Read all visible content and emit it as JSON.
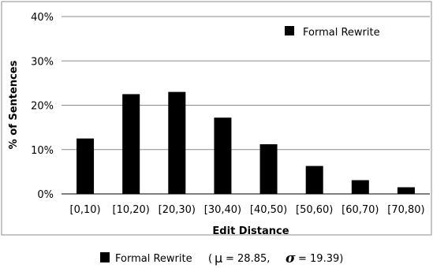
{
  "chart_data": {
    "type": "bar",
    "categories": [
      "[0,10)",
      "[10,20)",
      "[20,30)",
      "[30,40)",
      "[40,50)",
      "[50,60)",
      "[60,70)",
      "[70,80)"
    ],
    "series": [
      {
        "name": "Formal Rewrite",
        "values": [
          12.5,
          22.5,
          23.0,
          17.2,
          11.2,
          6.3,
          3.1,
          1.5
        ],
        "color": "#000000"
      }
    ],
    "xlabel": "Edit Distance",
    "ylabel": "% of Sentences",
    "ylim": [
      0,
      40
    ],
    "yticks": [
      0,
      10,
      20,
      30,
      40
    ],
    "ytick_labels": [
      "0%",
      "10%",
      "20%",
      "30%",
      "40%"
    ],
    "grid": true,
    "legend": "top-right",
    "caption": {
      "label": "Formal Rewrite",
      "mu_symbol": "μ",
      "mu_text": "= 28.85,",
      "sigma_symbol": "σ",
      "sigma_text": "= 19.39)",
      "open_paren": "("
    }
  }
}
